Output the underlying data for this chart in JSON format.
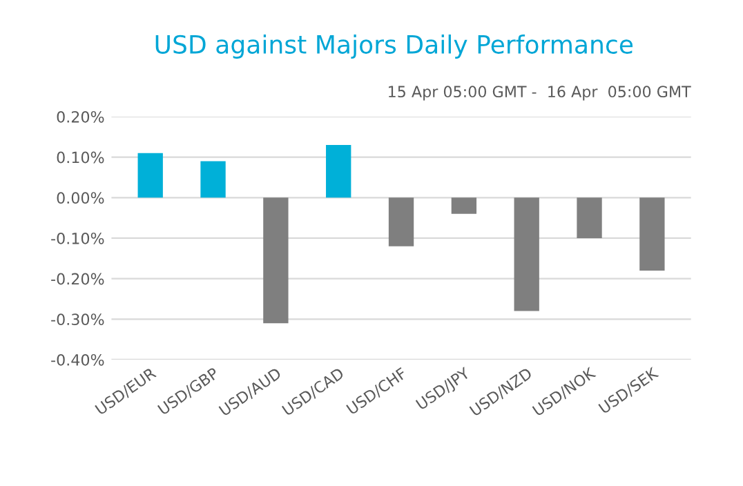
{
  "chart_data": {
    "type": "bar",
    "title": "USD against Majors Daily Performance",
    "subtitle": "15 Apr 05:00 GMT -  16 Apr  05:00 GMT",
    "categories": [
      "USD/EUR",
      "USD/GBP",
      "USD/AUD",
      "USD/CAD",
      "USD/CHF",
      "USD/JPY",
      "USD/NZD",
      "USD/NOK",
      "USD/SEK"
    ],
    "values": [
      0.11,
      0.09,
      -0.31,
      0.13,
      -0.12,
      -0.04,
      -0.28,
      -0.1,
      -0.18
    ],
    "colors": [
      "#00b0d8",
      "#00b0d8",
      "#7f7f7f",
      "#00b0d8",
      "#7f7f7f",
      "#7f7f7f",
      "#7f7f7f",
      "#7f7f7f",
      "#7f7f7f"
    ],
    "ylim": [
      -0.4,
      0.2
    ],
    "yticks": [
      {
        "value": -0.4,
        "label": "-0.40%"
      },
      {
        "value": -0.3,
        "label": "-0.30%"
      },
      {
        "value": -0.2,
        "label": "-0.20%"
      },
      {
        "value": -0.1,
        "label": "-0.10%"
      },
      {
        "value": 0,
        "label": "0.00%"
      },
      {
        "value": 0.1,
        "label": "0.10%"
      },
      {
        "value": 0.2,
        "label": "0.20%"
      }
    ],
    "grid": "y"
  }
}
